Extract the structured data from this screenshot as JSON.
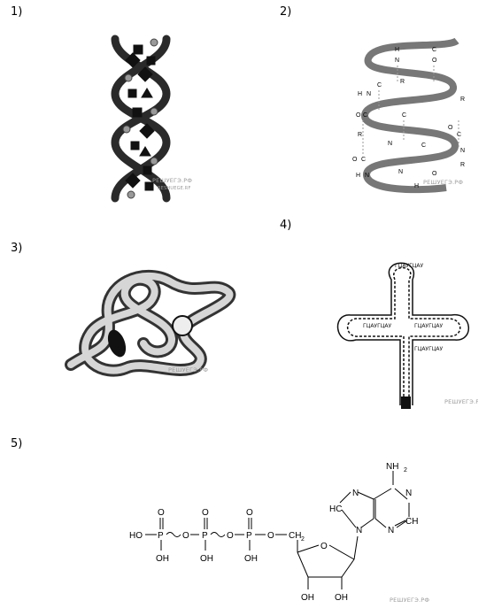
{
  "labels": [
    "1)",
    "2)",
    "3)",
    "4)",
    "5)"
  ],
  "watermark": "РЕШУЕГЭ.РФ",
  "atp": {
    "ho1": "HO",
    "p": "P",
    "o": "O",
    "oh": "OH",
    "ch2": "CH",
    "sub2": "2",
    "nh2": "NH",
    "n": "N",
    "hc": "HC",
    "ch": "CH"
  },
  "protein_atoms": {
    "h": "H",
    "n": "N",
    "c": "C",
    "o": "O",
    "r": "R"
  },
  "trna": {
    "letters": "ГЦАУГЦАУ"
  }
}
